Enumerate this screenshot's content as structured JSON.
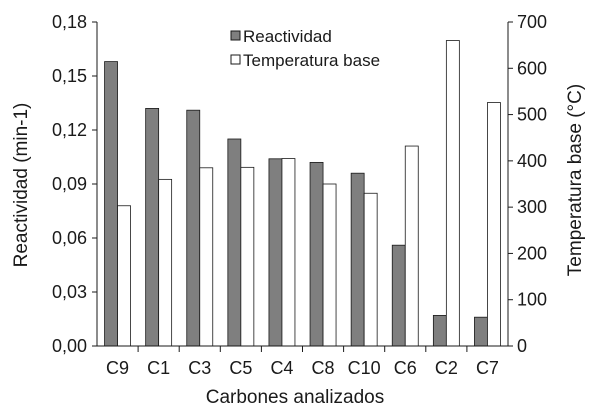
{
  "chart_data": {
    "type": "bar",
    "categories": [
      "C9",
      "C1",
      "C3",
      "C5",
      "C4",
      "C8",
      "C10",
      "C6",
      "C2",
      "C7"
    ],
    "series": [
      {
        "name": "Reactividad",
        "axis": "left",
        "color": "#7f7f7f",
        "values": [
          0.158,
          0.132,
          0.131,
          0.115,
          0.104,
          0.102,
          0.096,
          0.056,
          0.017,
          0.016
        ]
      },
      {
        "name": "Temperatura base",
        "axis": "right",
        "color": "#ffffff",
        "values": [
          303,
          360,
          385,
          386,
          405,
          350,
          330,
          432,
          660,
          526
        ]
      }
    ],
    "xlabel": "Carbones analizados",
    "ylabel_left": "Reactividad (min-1)",
    "ylabel_right": "Temperatura base (°C)",
    "ylim_left": [
      0,
      0.18
    ],
    "ylim_right": [
      0,
      700
    ],
    "yticks_left": [
      "0,00",
      "0,03",
      "0,06",
      "0,09",
      "0,12",
      "0,15",
      "0,18"
    ],
    "yticks_right": [
      "0",
      "100",
      "200",
      "300",
      "400",
      "500",
      "600",
      "700"
    ],
    "grid": false,
    "legend_position": "top-center"
  }
}
